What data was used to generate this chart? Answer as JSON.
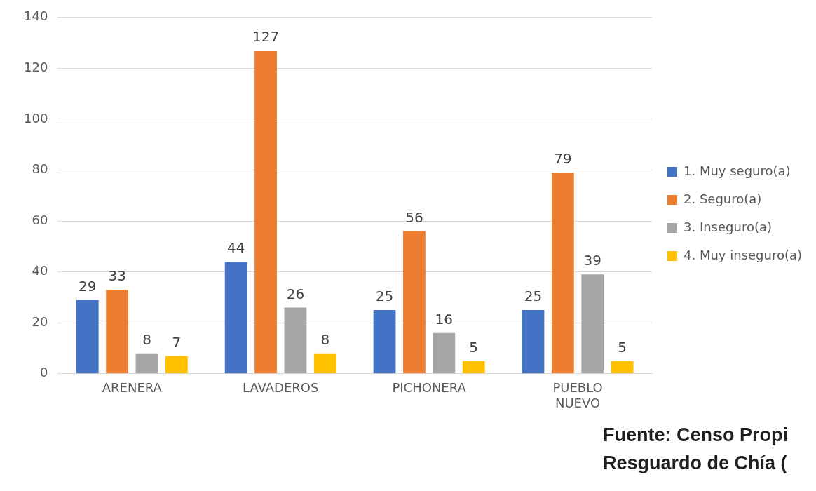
{
  "chart_data": {
    "type": "bar",
    "categories": [
      "ARENERA",
      "LAVADEROS",
      "PICHONERA",
      "PUEBLO NUEVO"
    ],
    "series": [
      {
        "name": "1. Muy seguro(a)",
        "color": "#4472c4",
        "values": [
          29,
          44,
          25,
          25
        ]
      },
      {
        "name": "2. Seguro(a)",
        "color": "#ed7d31",
        "values": [
          33,
          127,
          56,
          79
        ]
      },
      {
        "name": "3. Inseguro(a)",
        "color": "#a5a5a5",
        "values": [
          8,
          26,
          16,
          39
        ]
      },
      {
        "name": "4. Muy inseguro(a)",
        "color": "#ffc000",
        "values": [
          7,
          8,
          5,
          5
        ]
      }
    ],
    "ylim": [
      0,
      140
    ],
    "yticks": [
      0,
      20,
      40,
      60,
      80,
      100,
      120,
      140
    ],
    "grid": "y",
    "legend": "right",
    "data_labels": true,
    "annotations": [
      "Fuente: Censo Propi\nResguardo de Chía ("
    ]
  }
}
